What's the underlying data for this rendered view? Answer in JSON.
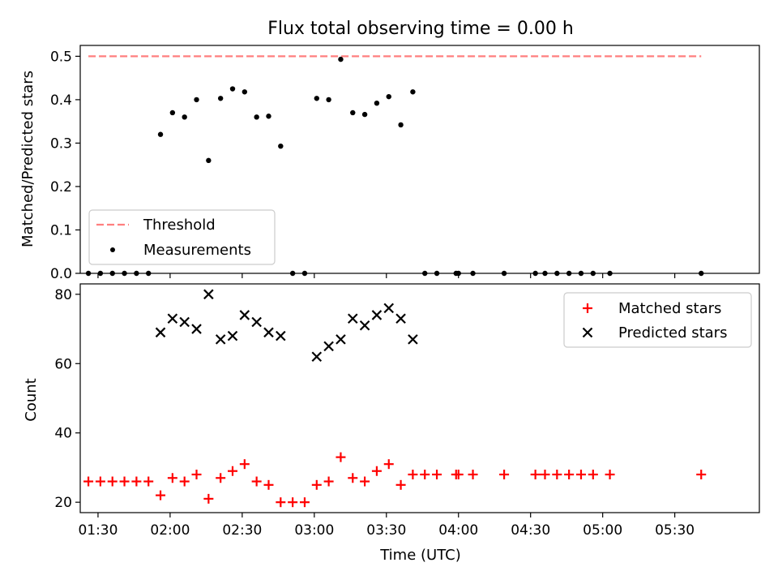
{
  "chart_data": [
    {
      "type": "scatter",
      "title": "Flux total observing time = 0.00 h",
      "xlabel": "",
      "ylabel": "Matched/Predicted stars",
      "ylim": [
        0,
        0.525
      ],
      "yticks": [
        "0.0",
        "0.1",
        "0.2",
        "0.3",
        "0.4",
        "0.5"
      ],
      "legend_position": "lower-left",
      "threshold": {
        "name": "Threshold",
        "value": 0.5,
        "color": "#ff7f7f",
        "style": "dashed"
      },
      "series": [
        {
          "name": "Measurements",
          "color": "#000000",
          "marker": "dot",
          "x": [
            "01:26",
            "01:31",
            "01:36",
            "01:41",
            "01:46",
            "01:51",
            "01:56",
            "02:01",
            "02:06",
            "02:11",
            "02:16",
            "02:21",
            "02:26",
            "02:31",
            "02:36",
            "02:41",
            "02:46",
            "02:51",
            "02:56",
            "03:01",
            "03:06",
            "03:11",
            "03:16",
            "03:21",
            "03:26",
            "03:31",
            "03:36",
            "03:41",
            "03:46",
            "03:51",
            "03:59",
            "04:00",
            "04:06",
            "04:19",
            "04:32",
            "04:36",
            "04:41",
            "04:46",
            "04:51",
            "04:56",
            "05:03",
            "05:41"
          ],
          "y": [
            0,
            0,
            0,
            0,
            0,
            0,
            0.32,
            0.37,
            0.36,
            0.4,
            0.26,
            0.403,
            0.425,
            0.418,
            0.36,
            0.362,
            0.293,
            0,
            0,
            0.403,
            0.4,
            0.493,
            0.37,
            0.366,
            0.392,
            0.407,
            0.342,
            0.418,
            0,
            0,
            0,
            0,
            0,
            0,
            0,
            0,
            0,
            0,
            0,
            0,
            0,
            0
          ]
        }
      ]
    },
    {
      "type": "scatter",
      "title": "",
      "xlabel": "Time (UTC)",
      "ylabel": "Count",
      "ylim": [
        17,
        83
      ],
      "yticks": [
        "20",
        "40",
        "60",
        "80"
      ],
      "xticks": [
        "01:30",
        "02:00",
        "02:30",
        "03:00",
        "03:30",
        "04:00",
        "04:30",
        "05:00",
        "05:30"
      ],
      "legend_position": "top-right",
      "series": [
        {
          "name": "Matched stars",
          "color": "#ff0000",
          "marker": "plus",
          "x": [
            "01:26",
            "01:31",
            "01:36",
            "01:41",
            "01:46",
            "01:51",
            "01:56",
            "02:01",
            "02:06",
            "02:11",
            "02:16",
            "02:21",
            "02:26",
            "02:31",
            "02:36",
            "02:41",
            "02:46",
            "02:51",
            "02:56",
            "03:01",
            "03:06",
            "03:11",
            "03:16",
            "03:21",
            "03:26",
            "03:31",
            "03:36",
            "03:41",
            "03:46",
            "03:51",
            "03:59",
            "04:00",
            "04:06",
            "04:19",
            "04:32",
            "04:36",
            "04:41",
            "04:46",
            "04:51",
            "04:56",
            "05:03",
            "05:41"
          ],
          "y": [
            26,
            26,
            26,
            26,
            26,
            26,
            22,
            27,
            26,
            28,
            21,
            27,
            29,
            31,
            26,
            25,
            20,
            20,
            20,
            25,
            26,
            33,
            27,
            26,
            29,
            31,
            25,
            28,
            28,
            28,
            28,
            28,
            28,
            28,
            28,
            28,
            28,
            28,
            28,
            28,
            28,
            28
          ]
        },
        {
          "name": "Predicted stars",
          "color": "#000000",
          "marker": "x",
          "x": [
            "01:56",
            "02:01",
            "02:06",
            "02:11",
            "02:16",
            "02:21",
            "02:26",
            "02:31",
            "02:36",
            "02:41",
            "02:46",
            "03:01",
            "03:06",
            "03:11",
            "03:16",
            "03:21",
            "03:26",
            "03:31",
            "03:36",
            "03:41"
          ],
          "y": [
            69,
            73,
            72,
            70,
            80,
            67,
            68,
            74,
            72,
            69,
            68,
            62,
            65,
            67,
            73,
            71,
            74,
            76,
            73,
            67
          ]
        }
      ]
    }
  ]
}
